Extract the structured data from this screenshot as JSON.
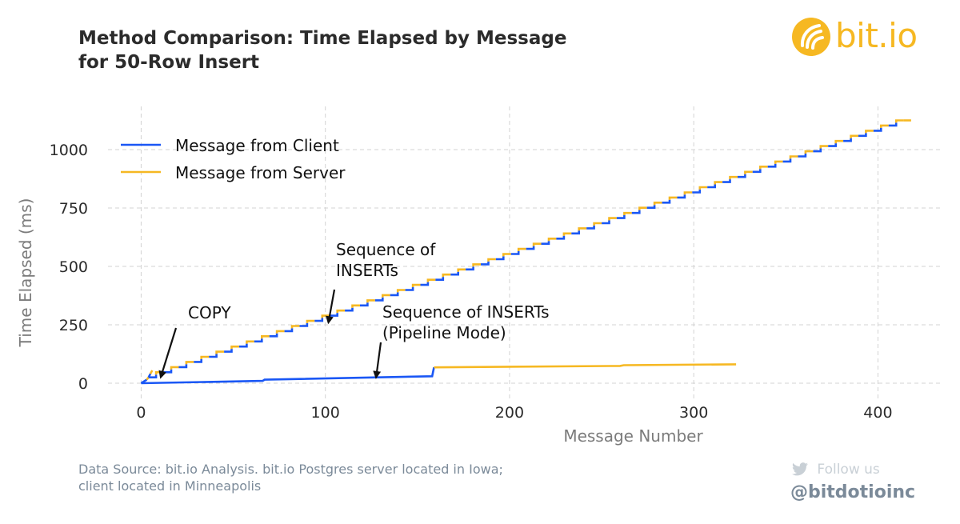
{
  "title_lines": [
    "Method Comparison: Time Elapsed by Message",
    "for 50-Row Insert"
  ],
  "brand": {
    "logo_text": "bit.io",
    "accent": "#f6b822"
  },
  "source_lines": [
    "Data Source: bit.io Analysis. bit.io Postgres server located in Iowa;",
    "client located in Minneapolis"
  ],
  "social": {
    "follow_label": "Follow us",
    "handle": "@bitdotioinc",
    "icon": "twitter-bird-icon"
  },
  "chart_data": {
    "type": "line",
    "xlabel": "Message Number",
    "ylabel": "Time Elapsed (ms)",
    "xlim": [
      -18,
      435
    ],
    "ylim": [
      -65,
      1185
    ],
    "xticks": [
      0,
      100,
      200,
      300,
      400
    ],
    "yticks": [
      0,
      250,
      500,
      750,
      1000
    ],
    "grid": true,
    "grid_style": "dashed",
    "legend_position": "top-left",
    "colors": {
      "client": "#1a57f5",
      "server": "#f6b822"
    },
    "series": [
      {
        "name": "Message from Client",
        "color": "#1a57f5"
      },
      {
        "name": "Message from Server",
        "color": "#f6b822"
      }
    ],
    "methods": [
      {
        "label": "COPY",
        "segments": [
          {
            "role": "client",
            "x": [
              0,
              3
            ],
            "y": [
              0,
              15
            ]
          },
          {
            "role": "server",
            "x": [
              3,
              4
            ],
            "y": [
              15,
              25
            ]
          },
          {
            "role": "client",
            "x": [
              4,
              5
            ],
            "y": [
              25,
              40
            ]
          },
          {
            "role": "server",
            "x": [
              5,
              6
            ],
            "y": [
              40,
              55
            ]
          }
        ]
      },
      {
        "label": "Sequence of INSERTs",
        "start_x": 4,
        "end_x": 414,
        "start_y": 25,
        "end_y": 1125,
        "steps": 50,
        "pattern": "alternating client/server staircase, 2 messages per row"
      },
      {
        "label": "Sequence of INSERTs (Pipeline Mode)",
        "segments": [
          {
            "role": "client",
            "x": [
              0,
              66,
              67,
              158,
              159
            ],
            "y": [
              0,
              10,
              15,
              30,
              68
            ]
          },
          {
            "role": "server",
            "x": [
              159,
              260,
              262,
              323
            ],
            "y": [
              68,
              74,
              77,
              81
            ]
          }
        ]
      }
    ],
    "annotations": [
      {
        "lines": [
          "COPY"
        ],
        "target": [
          9,
          90
        ]
      },
      {
        "lines": [
          "Sequence of",
          "INSERTs"
        ],
        "target": [
          100,
          290
        ]
      },
      {
        "lines": [
          "Sequence of INSERTs",
          "(Pipeline Mode)"
        ],
        "target": [
          125,
          45
        ]
      }
    ]
  }
}
